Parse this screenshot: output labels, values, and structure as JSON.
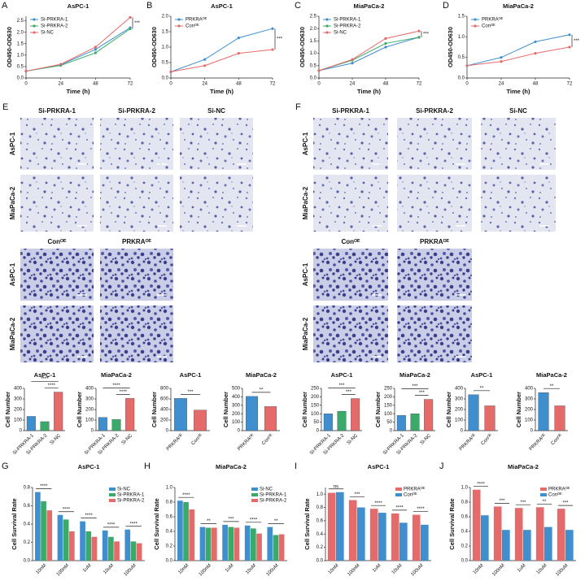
{
  "chart_data": [
    {
      "type": "line",
      "panel": "A",
      "title": "AsPC-1",
      "xlabel": "Time (h)",
      "ylabel": "OD450-OD630",
      "x": [
        0,
        24,
        48,
        72
      ],
      "xlim": [
        0,
        72
      ],
      "xticks": [
        0,
        24,
        48,
        72
      ],
      "ylim": [
        0,
        2.7
      ],
      "yticks": [
        {
          "value": 0,
          "label": "0.0"
        },
        0.5,
        {
          "value": 1,
          "label": "1.0"
        },
        1.5,
        {
          "value": 2,
          "label": "2.0"
        },
        2.5
      ],
      "legend": "upper left",
      "annotations": [
        "***"
      ],
      "series": [
        {
          "name": "Si-PRKRA-1",
          "color": "#3f8fcf",
          "values": [
            0.3,
            0.58,
            1.25,
            2.2
          ]
        },
        {
          "name": "Si-PRKRA-2",
          "color": "#3aaa6a",
          "values": [
            0.3,
            0.55,
            1.1,
            2.15
          ]
        },
        {
          "name": "Si-NC",
          "color": "#e56b6b",
          "values": [
            0.3,
            0.6,
            1.35,
            2.65
          ]
        }
      ]
    },
    {
      "type": "line",
      "panel": "B",
      "title": "AsPC-1",
      "xlabel": "Time (h)",
      "ylabel": "OD450-OD630",
      "x": [
        0,
        24,
        48,
        72
      ],
      "xlim": [
        0,
        72
      ],
      "xticks": [
        0,
        24,
        48,
        72
      ],
      "ylim": [
        0,
        2.0
      ],
      "yticks": [
        {
          "value": 0,
          "label": "0.0"
        },
        0.5,
        {
          "value": 1,
          "label": "1.0"
        },
        1.5,
        {
          "value": 2,
          "label": "2.0"
        }
      ],
      "legend": "upper left",
      "annotations": [
        "***"
      ],
      "series": [
        {
          "name": "PRKRAᴼᴱ",
          "color": "#3f8fcf",
          "values": [
            0.2,
            0.6,
            1.3,
            1.6
          ]
        },
        {
          "name": "Conᴼᴱ",
          "color": "#e56b6b",
          "values": [
            0.2,
            0.4,
            0.8,
            0.92
          ]
        }
      ]
    },
    {
      "type": "line",
      "panel": "C",
      "title": "MiaPaCa-2",
      "xlabel": "Time (h)",
      "ylabel": "OD450-OD630",
      "x": [
        0,
        24,
        48,
        72
      ],
      "xlim": [
        0,
        72
      ],
      "xticks": [
        0,
        24,
        48,
        72
      ],
      "ylim": [
        0,
        2.5
      ],
      "yticks": [
        {
          "value": 0,
          "label": "0.0"
        },
        0.5,
        {
          "value": 1,
          "label": "1.0"
        },
        1.5,
        {
          "value": 2,
          "label": "2.0"
        },
        2.5
      ],
      "legend": "upper left",
      "annotations": [
        "***"
      ],
      "series": [
        {
          "name": "Si-PRKRA-1",
          "color": "#3f8fcf",
          "values": [
            0.3,
            0.6,
            1.25,
            1.65
          ]
        },
        {
          "name": "Si-PRKRA-2",
          "color": "#3aaa6a",
          "values": [
            0.3,
            0.72,
            1.4,
            1.65
          ]
        },
        {
          "name": "Si-NC",
          "color": "#e56b6b",
          "values": [
            0.3,
            0.75,
            1.6,
            1.9
          ]
        }
      ]
    },
    {
      "type": "line",
      "panel": "D",
      "title": "MiaPaCa-2",
      "xlabel": "Time (h)",
      "ylabel": "OD450-OD630",
      "x": [
        0,
        24,
        48,
        72
      ],
      "xlim": [
        0,
        72
      ],
      "xticks": [
        0,
        24,
        48,
        72
      ],
      "ylim": [
        0,
        1.5
      ],
      "yticks": [
        {
          "value": 0,
          "label": "0.0"
        },
        0.5,
        {
          "value": 1,
          "label": "1.0"
        },
        1.5
      ],
      "legend": "upper left",
      "annotations": [
        "***"
      ],
      "series": [
        {
          "name": "PRKRAᴼᴱ",
          "color": "#3f8fcf",
          "values": [
            0.3,
            0.5,
            0.88,
            1.05
          ]
        },
        {
          "name": "Conᴼᴱ",
          "color": "#e56b6b",
          "values": [
            0.3,
            0.4,
            0.6,
            0.75
          ]
        }
      ]
    },
    {
      "type": "bar",
      "title": "AsPC-1",
      "ylabel": "Cell Number",
      "categories": [
        "Si-PRKRA-1",
        "Si-PRKRA-2",
        "Si-NC"
      ],
      "values": [
        135,
        85,
        365
      ],
      "colors": [
        "#3f8fcf",
        "#3aaa6a",
        "#e56b6b"
      ],
      "ylim": [
        0,
        400
      ],
      "yticks": [
        0,
        100,
        200,
        300,
        400
      ],
      "annotations": [
        "****",
        "****"
      ]
    },
    {
      "type": "bar",
      "title": "MiaPaCa-2",
      "ylabel": "Cell Number",
      "categories": [
        "Si-PRKRA-1",
        "Si-PRKRA-2",
        "Si-NC"
      ],
      "values": [
        125,
        105,
        305
      ],
      "colors": [
        "#3f8fcf",
        "#3aaa6a",
        "#e56b6b"
      ],
      "ylim": [
        0,
        400
      ],
      "yticks": [
        0,
        100,
        200,
        300,
        400
      ],
      "annotations": [
        "****",
        "****"
      ]
    },
    {
      "type": "bar",
      "title": "AsPC-1",
      "ylabel": "Cell Number",
      "categories": [
        "PRKRAᴼᴱ",
        "Conᴼᴱ"
      ],
      "values": [
        610,
        390
      ],
      "colors": [
        "#3f8fcf",
        "#e56b6b"
      ],
      "ylim": [
        0,
        800
      ],
      "yticks": [
        0,
        200,
        400,
        600,
        800
      ],
      "annotations": [
        "***"
      ]
    },
    {
      "type": "bar",
      "title": "MiaPaCa-2",
      "ylabel": "Cell Number",
      "categories": [
        "PRKRAᴼᴱ",
        "Conᴼᴱ"
      ],
      "values": [
        405,
        285
      ],
      "colors": [
        "#3f8fcf",
        "#e56b6b"
      ],
      "ylim": [
        0,
        500
      ],
      "yticks": [
        0,
        100,
        200,
        300,
        400,
        500
      ],
      "annotations": [
        "**"
      ]
    },
    {
      "type": "bar",
      "title": "AsPC-1",
      "ylabel": "Cell Number",
      "categories": [
        "Si-PRKRA-1",
        "Si-PRKRA-2",
        "Si-NC"
      ],
      "values": [
        100,
        115,
        190
      ],
      "colors": [
        "#3f8fcf",
        "#3aaa6a",
        "#e56b6b"
      ],
      "ylim": [
        0,
        250
      ],
      "yticks": [
        0,
        50,
        100,
        150,
        200,
        250
      ],
      "annotations": [
        "***",
        "***"
      ]
    },
    {
      "type": "bar",
      "title": "MiaPaCa-2",
      "ylabel": "Cell Number",
      "categories": [
        "Si-PRKRA-1",
        "Si-PRKRA-2",
        "Si-NC"
      ],
      "values": [
        90,
        100,
        185
      ],
      "colors": [
        "#3f8fcf",
        "#3aaa6a",
        "#e56b6b"
      ],
      "ylim": [
        0,
        250
      ],
      "yticks": [
        0,
        50,
        100,
        150,
        200,
        250
      ],
      "annotations": [
        "***",
        "***"
      ]
    },
    {
      "type": "bar",
      "title": "AsPC-1",
      "ylabel": "Cell Number",
      "categories": [
        "PRKRAᴼᴱ",
        "Conᴼᴱ"
      ],
      "values": [
        340,
        235
      ],
      "colors": [
        "#3f8fcf",
        "#e56b6b"
      ],
      "ylim": [
        0,
        400
      ],
      "yticks": [
        0,
        100,
        200,
        300,
        400
      ],
      "annotations": [
        "**"
      ]
    },
    {
      "type": "bar",
      "title": "MiaPaCa-2",
      "ylabel": "Cell Number",
      "categories": [
        "PRKRAᴼᴱ",
        "Conᴼᴱ"
      ],
      "values": [
        360,
        235
      ],
      "colors": [
        "#3f8fcf",
        "#e56b6b"
      ],
      "ylim": [
        0,
        400
      ],
      "yticks": [
        0,
        100,
        200,
        300,
        400
      ],
      "annotations": [
        "**"
      ]
    },
    {
      "type": "bar",
      "panel": "G",
      "title": "AsPC-1",
      "ylabel": "Cell Survival Rate",
      "categories": [
        "10nM",
        "100nM",
        "1uM",
        "10uM",
        "100uM"
      ],
      "ylim": [
        0,
        0.8
      ],
      "yticks": [
        {
          "value": 0,
          "label": "0.0"
        },
        0.2,
        0.4,
        0.6,
        0.8
      ],
      "legend": "upper right",
      "annotations": [
        "****",
        "****",
        "****",
        "****",
        "****"
      ],
      "series": [
        {
          "name": "Si-NC",
          "color": "#3f8fcf",
          "values": [
            0.75,
            0.5,
            0.43,
            0.33,
            0.34
          ]
        },
        {
          "name": "Si-PRKRA-1",
          "color": "#3aaa6a",
          "values": [
            0.65,
            0.45,
            0.32,
            0.26,
            0.21
          ]
        },
        {
          "name": "Si-PRKRA-2",
          "color": "#e56b6b",
          "values": [
            0.55,
            0.32,
            0.26,
            0.21,
            0.19
          ]
        }
      ]
    },
    {
      "type": "bar",
      "panel": "H",
      "title": "MiaPaCa-2",
      "ylabel": "Cell Survival Rate",
      "categories": [
        "10nM",
        "100nM",
        "1uM",
        "10uM",
        "100uM"
      ],
      "ylim": [
        0,
        1.0
      ],
      "yticks": [
        {
          "value": 0,
          "label": "0.0"
        },
        0.2,
        0.4,
        0.6,
        0.8,
        {
          "value": 1,
          "label": "1.0"
        }
      ],
      "legend": "upper right",
      "annotations": [
        "****",
        "**",
        "***",
        "****",
        "**"
      ],
      "series": [
        {
          "name": "Si-NC",
          "color": "#3f8fcf",
          "values": [
            0.82,
            0.46,
            0.49,
            0.48,
            0.46
          ]
        },
        {
          "name": "Si-PRKRA-1",
          "color": "#3aaa6a",
          "values": [
            0.8,
            0.45,
            0.46,
            0.44,
            0.35
          ]
        },
        {
          "name": "Si-PRKRA-2",
          "color": "#e56b6b",
          "values": [
            0.7,
            0.45,
            0.45,
            0.37,
            0.36
          ]
        }
      ]
    },
    {
      "type": "bar",
      "panel": "I",
      "title": "AsPC-1",
      "ylabel": "Cell Survival Rate",
      "categories": [
        "10nM",
        "100nM",
        "1uM",
        "10uM",
        "100uM"
      ],
      "ylim": [
        0,
        1.1
      ],
      "yticks": [
        {
          "value": 0,
          "label": "0.0"
        },
        0.2,
        0.4,
        0.6,
        0.8,
        {
          "value": 1,
          "label": "1.0"
        }
      ],
      "legend": "upper right",
      "annotations": [
        "ns",
        "***",
        "****",
        "****",
        "****"
      ],
      "series": [
        {
          "name": "PRKRAᴼᴱ",
          "color": "#e56b6b",
          "values": [
            1.02,
            0.91,
            0.78,
            0.71,
            0.69
          ]
        },
        {
          "name": "Conᴼᴱ",
          "color": "#3f8fcf",
          "values": [
            1.03,
            0.8,
            0.72,
            0.57,
            0.54
          ]
        }
      ]
    },
    {
      "type": "bar",
      "panel": "J",
      "title": "MiaPaCa-2",
      "ylabel": "Cell Survival Rate",
      "categories": [
        "10nM",
        "100nM",
        "1uM",
        "10uM",
        "100uM"
      ],
      "ylim": [
        0,
        1.0
      ],
      "yticks": [
        {
          "value": 0,
          "label": "0.0"
        },
        0.2,
        0.4,
        0.6,
        0.8,
        {
          "value": 1,
          "label": "1.0"
        }
      ],
      "legend": "upper right",
      "annotations": [
        "****",
        "***",
        "***",
        "**",
        "***"
      ],
      "series": [
        {
          "name": "PRKRAᴼᴱ",
          "color": "#e56b6b",
          "values": [
            0.97,
            0.74,
            0.72,
            0.73,
            0.71
          ]
        },
        {
          "name": "Conᴼᴱ",
          "color": "#3f8fcf",
          "values": [
            0.62,
            0.42,
            0.42,
            0.46,
            0.42
          ]
        }
      ]
    }
  ],
  "image_panels": [
    {
      "panel": "E",
      "groups": [
        {
          "columns": [
            "Si-PRKRA-1",
            "Si-PRKRA-2",
            "Si-NC"
          ],
          "rows": [
            "AsPC-1",
            "MiaPaCa-2"
          ]
        },
        {
          "columns": [
            "Conᴼᴱ",
            "PRKRAᴼᴱ"
          ],
          "rows": [
            "AsPC-1",
            "MiaPaCa-2"
          ]
        }
      ]
    },
    {
      "panel": "F",
      "groups": [
        {
          "columns": [
            "Si-PRKRA-1",
            "Si-PRKRA-2",
            "Si-NC"
          ],
          "rows": [
            "AsPC-1",
            "MiaPaCa-2"
          ]
        },
        {
          "columns": [
            "Conᴼᴱ",
            "PRKRAᴼᴱ"
          ],
          "rows": [
            "AsPC-1",
            "MiaPaCa-2"
          ]
        }
      ]
    }
  ]
}
